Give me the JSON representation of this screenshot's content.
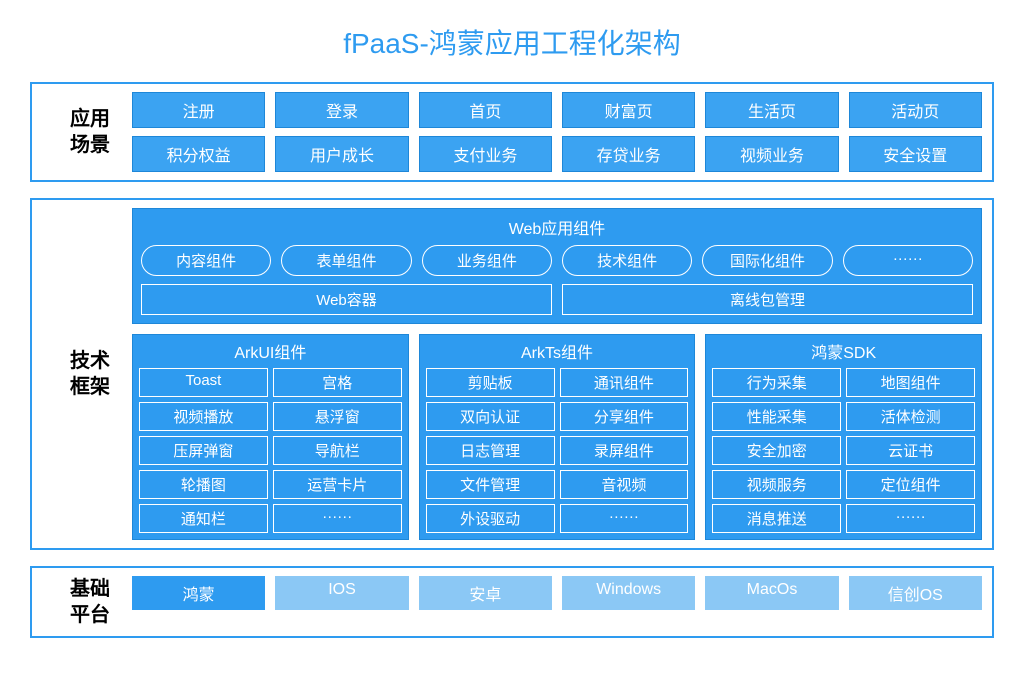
{
  "colors": {
    "title": "#2e9bf0",
    "section_border": "#2e9bf0",
    "cell_border": "#1e87d8",
    "cell_bg": "#3ba3f2",
    "box_bg": "#2e9bf0",
    "light_cell_bg": "#8bc8f5",
    "primary_cell_bg": "#2e9bf0"
  },
  "title": "fPaaS-鸿蒙应用工程化架构",
  "app_scenarios": {
    "label": "应用\n场景",
    "row1": [
      "注册",
      "登录",
      "首页",
      "财富页",
      "生活页",
      "活动页"
    ],
    "row2": [
      "积分权益",
      "用户成长",
      "支付业务",
      "存贷业务",
      "视频业务",
      "安全设置"
    ]
  },
  "tech_framework": {
    "label": "技术\n框架",
    "web": {
      "title": "Web应用组件",
      "pills": [
        "内容组件",
        "表单组件",
        "业务组件",
        "技术组件",
        "国际化组件",
        "······"
      ],
      "halves": [
        "Web容器",
        "离线包管理"
      ]
    },
    "columns": [
      {
        "title": "ArkUI组件",
        "cells": [
          "Toast",
          "宫格",
          "视频播放",
          "悬浮窗",
          "压屏弹窗",
          "导航栏",
          "轮播图",
          "运营卡片",
          "通知栏",
          "······"
        ]
      },
      {
        "title": "ArkTs组件",
        "cells": [
          "剪贴板",
          "通讯组件",
          "双向认证",
          "分享组件",
          "日志管理",
          "录屏组件",
          "文件管理",
          "音视频",
          "外设驱动",
          "······"
        ]
      },
      {
        "title": "鸿蒙SDK",
        "cells": [
          "行为采集",
          "地图组件",
          "性能采集",
          "活体检测",
          "安全加密",
          "云证书",
          "视频服务",
          "定位组件",
          "消息推送",
          "······"
        ]
      }
    ]
  },
  "base_platform": {
    "label": "基础\n平台",
    "primary": "鸿蒙",
    "others": [
      "IOS",
      "安卓",
      "Windows",
      "MacOs",
      "信创OS"
    ]
  }
}
